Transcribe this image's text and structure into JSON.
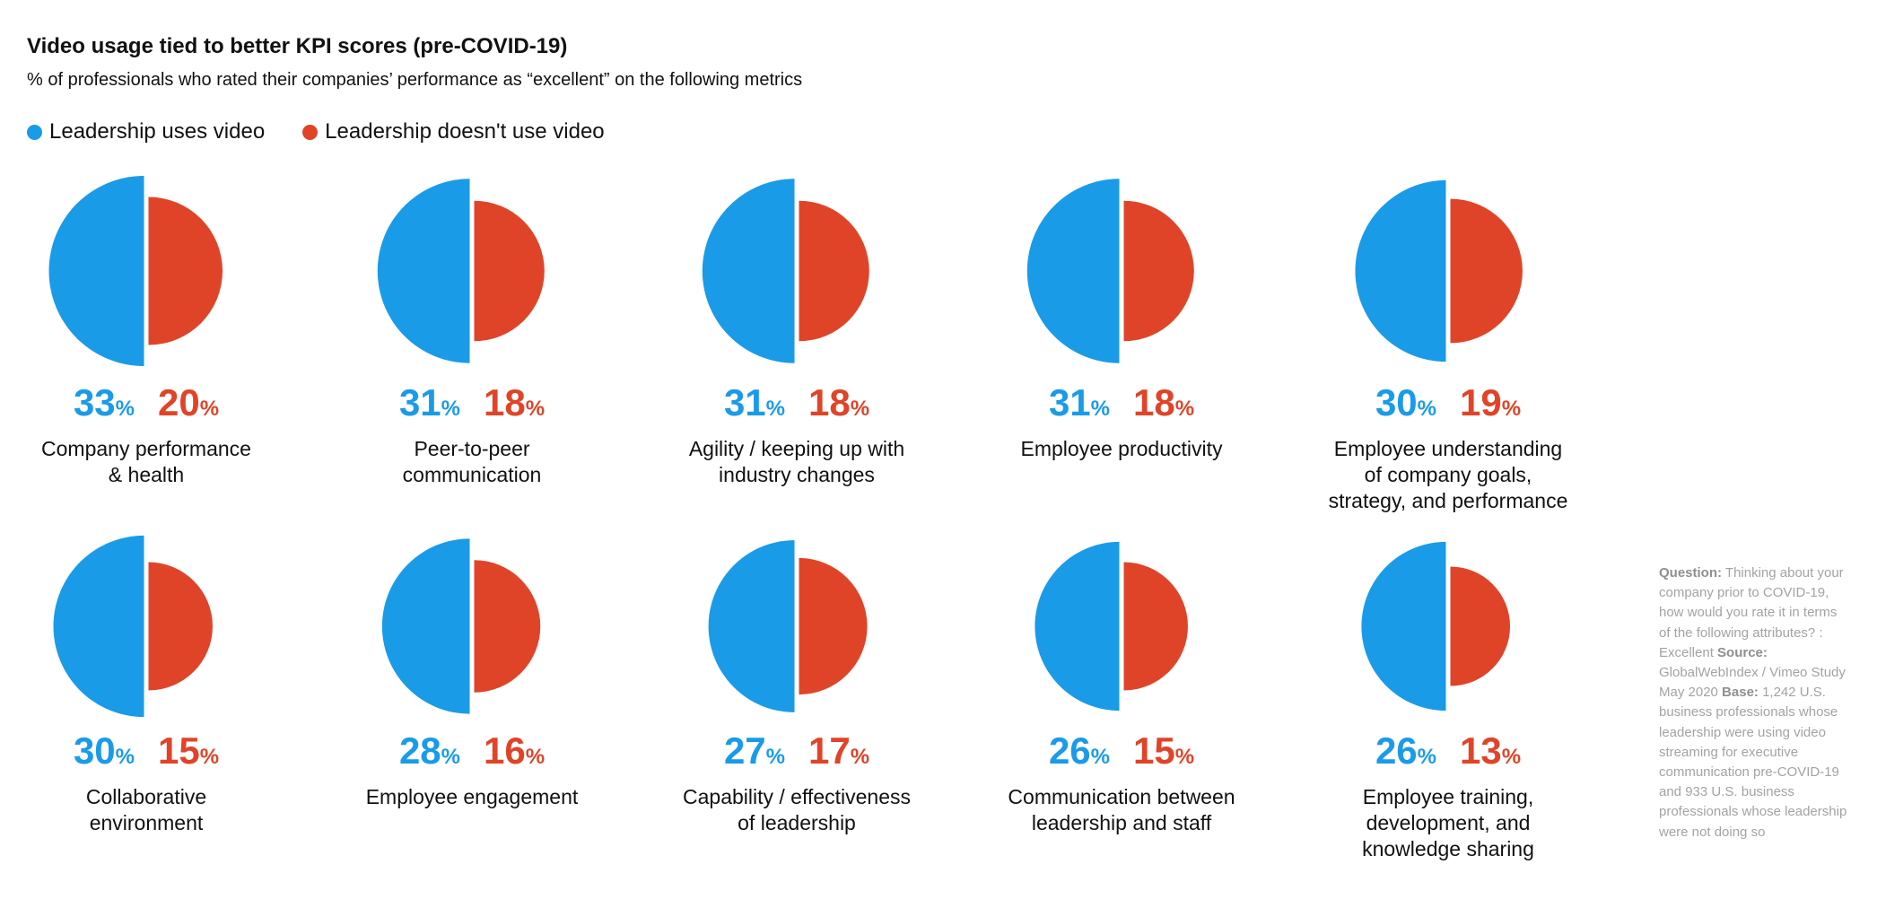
{
  "header": {
    "title": "Video usage tied to better KPI scores (pre-COVID-19)",
    "subtitle": "% of professionals who rated their companies’ performance as “excellent” on the following metrics"
  },
  "colors": {
    "uses_video": "#1a9be8",
    "no_video": "#e04428"
  },
  "chart_data": {
    "type": "paired semicircles",
    "unit": "%",
    "series": [
      {
        "name": "Leadership uses video",
        "color": "#1a9be8"
      },
      {
        "name": "Leadership doesn't use video",
        "color": "#e04428"
      }
    ],
    "items": [
      {
        "label": "Company performance\n& health",
        "uses_video": 33,
        "no_video": 20
      },
      {
        "label": "Peer-to-peer\ncommunication",
        "uses_video": 31,
        "no_video": 18
      },
      {
        "label": "Agility / keeping up with\nindustry changes",
        "uses_video": 31,
        "no_video": 18
      },
      {
        "label": "Employee productivity",
        "uses_video": 31,
        "no_video": 18
      },
      {
        "label": "Employee understanding\nof company goals,\nstrategy, and performance",
        "uses_video": 30,
        "no_video": 19
      },
      {
        "label": "Collaborative\nenvironment",
        "uses_video": 30,
        "no_video": 15
      },
      {
        "label": "Employee engagement",
        "uses_video": 28,
        "no_video": 16
      },
      {
        "label": "Capability / effectiveness\nof leadership",
        "uses_video": 27,
        "no_video": 17
      },
      {
        "label": "Communication between\nleadership and staff",
        "uses_video": 26,
        "no_video": 15
      },
      {
        "label": "Employee training,\ndevelopment, and\nknowledge sharing",
        "uses_video": 26,
        "no_video": 13
      }
    ]
  },
  "note": {
    "question_label": "Question:",
    "question_text": "Thinking about your company prior to COVID-19, how would you rate it in terms of the following attributes? : Excellent",
    "source_label": "Source:",
    "source_text": "GlobalWebIndex / Vimeo Study May 2020",
    "base_label": "Base:",
    "base_text": "1,242 U.S. business professionals whose leadership were using video streaming for executive communication pre-COVID-19 and 933 U.S. business professionals whose leadership were not doing so"
  }
}
